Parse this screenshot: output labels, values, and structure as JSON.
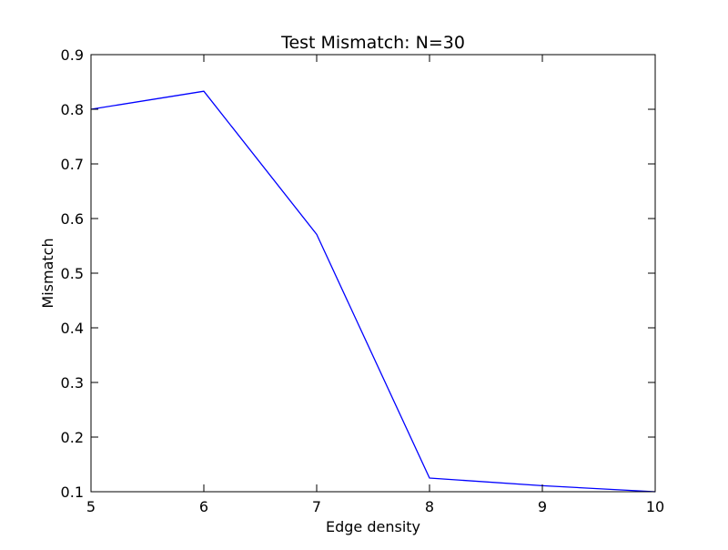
{
  "chart_data": {
    "type": "line",
    "title": "Test Mismatch: N=30",
    "xlabel": "Edge density",
    "ylabel": "Mismatch",
    "xlim": [
      5,
      10
    ],
    "ylim": [
      0.1,
      0.9
    ],
    "xticks": [
      5,
      6,
      7,
      8,
      9,
      10
    ],
    "xtick_labels": [
      "5",
      "6",
      "7",
      "8",
      "9",
      "10"
    ],
    "yticks": [
      0.1,
      0.2,
      0.3,
      0.4,
      0.5,
      0.6,
      0.7,
      0.8,
      0.9
    ],
    "ytick_labels": [
      "0.1",
      "0.2",
      "0.3",
      "0.4",
      "0.5",
      "0.6",
      "0.7",
      "0.8",
      "0.9"
    ],
    "grid": false,
    "series": [
      {
        "x": [
          5,
          6,
          7,
          8,
          9,
          10
        ],
        "values": [
          0.8,
          0.833,
          0.571,
          0.125,
          0.111,
          0.1
        ],
        "color": "#0000ff"
      }
    ]
  }
}
